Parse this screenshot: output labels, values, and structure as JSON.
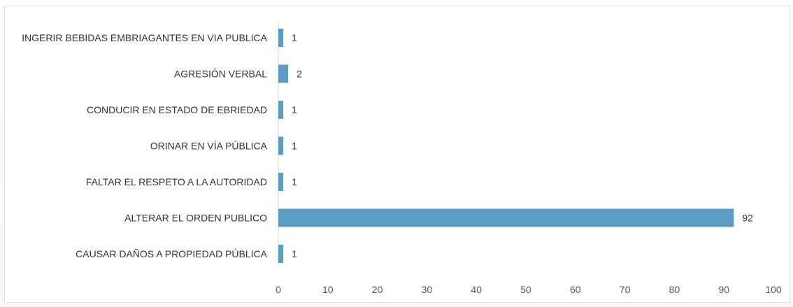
{
  "chart_data": {
    "type": "bar",
    "orientation": "horizontal",
    "title": "",
    "xlabel": "",
    "ylabel": "",
    "categories": [
      "INGERIR BEBIDAS EMBRIAGANTES EN VIA PUBLICA",
      "AGRESIÓN VERBAL",
      "CONDUCIR EN ESTADO DE EBRIEDAD",
      "ORINAR EN VÍA PÚBLICA",
      "FALTAR EL RESPETO A LA AUTORIDAD",
      "ALTERAR EL ORDEN PUBLICO",
      "CAUSAR DAÑOS A PROPIEDAD PÚBLICA"
    ],
    "values": [
      1,
      2,
      1,
      1,
      1,
      92,
      1
    ],
    "xlim": [
      0,
      100
    ],
    "xticks": [
      0,
      10,
      20,
      30,
      40,
      50,
      60,
      70,
      80,
      90,
      100
    ],
    "grid": false,
    "legend": "none",
    "bar_color": "#5b9bc4",
    "axis_color": "#d9d9d9"
  }
}
